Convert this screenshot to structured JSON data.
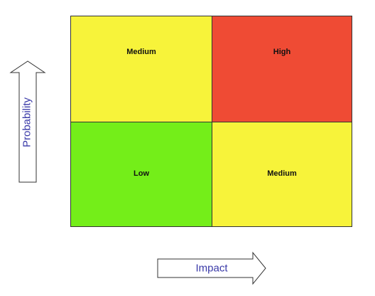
{
  "matrix": {
    "cells": [
      {
        "label": "Medium",
        "color": "#f7f33a"
      },
      {
        "label": "High",
        "color": "#ef4b34"
      },
      {
        "label": "Low",
        "color": "#74ee19"
      },
      {
        "label": "Medium",
        "color": "#f7f33a"
      }
    ]
  },
  "axes": {
    "y_label": "Probability",
    "x_label": "Impact",
    "label_color": "#3a3aa8"
  }
}
